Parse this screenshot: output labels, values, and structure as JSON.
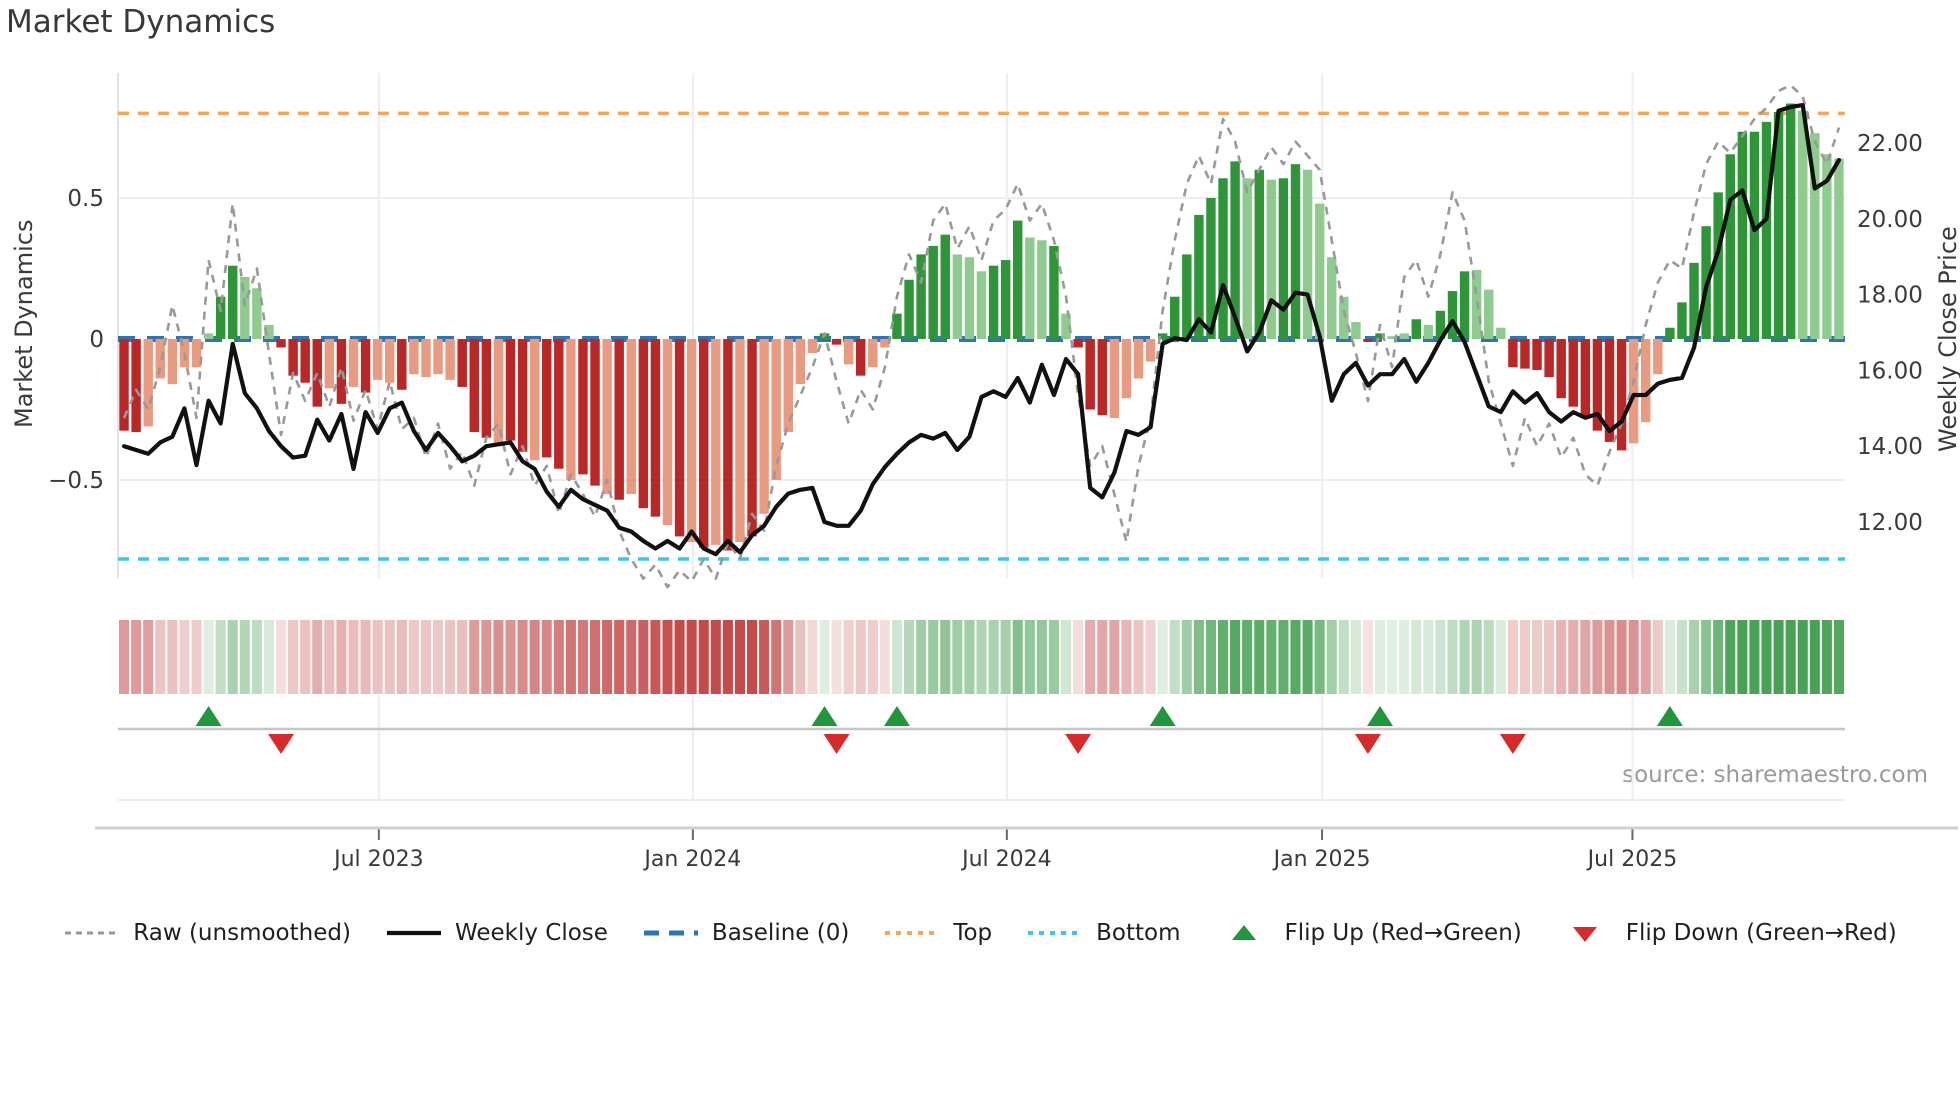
{
  "title": "Market Dynamics",
  "source_text": "source: sharemaestro.com",
  "left_axis": {
    "label": "Market Dynamics",
    "ticks": [
      {
        "label": "0.5",
        "v": 0.5
      },
      {
        "label": "0",
        "v": 0.0
      },
      {
        "label": "−0.5",
        "v": -0.5
      }
    ]
  },
  "right_axis": {
    "label": "Weekly Close Price",
    "ticks": [
      {
        "label": "22.00",
        "p": 22
      },
      {
        "label": "20.00",
        "p": 20
      },
      {
        "label": "18.00",
        "p": 18
      },
      {
        "label": "16.00",
        "p": 16
      },
      {
        "label": "14.00",
        "p": 14
      },
      {
        "label": "12.00",
        "p": 12
      }
    ]
  },
  "legend": {
    "items": [
      {
        "label": "Raw (unsmoothed)",
        "kind": "dash-gray"
      },
      {
        "label": "Weekly Close",
        "kind": "solid-black"
      },
      {
        "label": "Baseline (0)",
        "kind": "dash-blue"
      },
      {
        "label": "Top",
        "kind": "dot-orange"
      },
      {
        "label": "Bottom",
        "kind": "dot-cyan"
      },
      {
        "label": "Flip Up (Red→Green)",
        "kind": "tri-up"
      },
      {
        "label": "Flip Down (Green→Red)",
        "kind": "tri-down"
      }
    ]
  },
  "colors": {
    "bar_red_dark": "#b92727",
    "bar_red_light": "#e89b80",
    "bar_green_dark": "#2e9639",
    "bar_green_light": "#8fcb8f",
    "price_line": "#111111",
    "raw_line": "#999999",
    "baseline": "#2e75b4",
    "top_line": "#f2a85c",
    "bottom_line": "#3ec6e8",
    "flip_up": "#21963c",
    "flip_down": "#d62b2b",
    "grid": "#ededf3",
    "spine": "#d0d0d0",
    "marker_rail": "#c6c6c6",
    "tick_text": "#3a3a3a"
  },
  "chart_data": {
    "type": "bar+line",
    "title": "Market Dynamics",
    "ylabel_left": "Market Dynamics",
    "ylabel_right": "Weekly Close Price",
    "ylim_left": [
      -0.95,
      0.95
    ],
    "ylim_right": [
      10.4,
      23.8
    ],
    "top_threshold": 0.8,
    "bottom_threshold": -0.78,
    "baseline": 0,
    "x_ticks": [
      {
        "label": "Jul 2023",
        "week": 21.1
      },
      {
        "label": "Jan 2024",
        "week": 47.1
      },
      {
        "label": "Jul 2024",
        "week": 73.1
      },
      {
        "label": "Jan 2025",
        "week": 99.2
      },
      {
        "label": "Jul 2025",
        "week": 124.9
      }
    ],
    "oscillator_values": [
      -0.325,
      -0.33,
      -0.31,
      -0.14,
      -0.16,
      -0.1,
      -0.1,
      0.02,
      0.15,
      0.26,
      0.22,
      0.18,
      0.05,
      -0.03,
      -0.13,
      -0.155,
      -0.24,
      -0.175,
      -0.23,
      -0.17,
      -0.19,
      -0.145,
      -0.155,
      -0.18,
      -0.125,
      -0.135,
      -0.125,
      -0.145,
      -0.17,
      -0.33,
      -0.35,
      -0.38,
      -0.36,
      -0.4,
      -0.43,
      -0.42,
      -0.46,
      -0.5,
      -0.48,
      -0.52,
      -0.55,
      -0.57,
      -0.55,
      -0.6,
      -0.63,
      -0.66,
      -0.7,
      -0.72,
      -0.74,
      -0.73,
      -0.75,
      -0.72,
      -0.7,
      -0.62,
      -0.5,
      -0.33,
      -0.16,
      -0.05,
      0.02,
      -0.02,
      -0.09,
      -0.13,
      -0.1,
      -0.03,
      0.09,
      0.21,
      0.3,
      0.33,
      0.37,
      0.3,
      0.29,
      0.24,
      0.26,
      0.28,
      0.42,
      0.36,
      0.35,
      0.33,
      0.09,
      -0.03,
      -0.25,
      -0.27,
      -0.28,
      -0.21,
      -0.14,
      -0.08,
      0.02,
      0.15,
      0.3,
      0.44,
      0.5,
      0.57,
      0.63,
      0.57,
      0.6,
      0.565,
      0.57,
      0.62,
      0.6,
      0.48,
      0.29,
      0.15,
      0.06,
      -0.01,
      0.02,
      0.01,
      0.02,
      0.07,
      0.05,
      0.1,
      0.17,
      0.24,
      0.245,
      0.175,
      0.04,
      -0.1,
      -0.105,
      -0.11,
      -0.135,
      -0.21,
      -0.24,
      -0.28,
      -0.325,
      -0.365,
      -0.395,
      -0.37,
      -0.295,
      -0.125,
      0.04,
      0.13,
      0.27,
      0.4,
      0.52,
      0.655,
      0.735,
      0.735,
      0.77,
      0.805,
      0.835,
      0.81,
      0.73,
      0.655,
      0.64
    ],
    "shade_pattern": "ddlllllldd lllddddldl dlldlllldd dlddlddldd ldlddldldl dldllllldd ldlldddddl lldddlldld ddlllldddd dddldlddll lllddlldld ddlllddddd dddddllldd dddddddddl lll",
    "weekly_close": [
      14.0,
      13.9,
      13.8,
      14.1,
      14.25,
      15.0,
      13.5,
      15.2,
      14.6,
      16.7,
      15.4,
      15.0,
      14.4,
      14.0,
      13.7,
      13.75,
      14.7,
      14.15,
      14.85,
      13.4,
      14.9,
      14.35,
      15.0,
      15.15,
      14.4,
      13.9,
      14.35,
      14.0,
      13.6,
      13.75,
      14.0,
      14.05,
      14.1,
      13.6,
      13.4,
      12.8,
      12.4,
      12.85,
      12.6,
      12.45,
      12.3,
      11.85,
      11.75,
      11.5,
      11.3,
      11.5,
      11.3,
      11.75,
      11.3,
      11.15,
      11.5,
      11.2,
      11.65,
      11.9,
      12.4,
      12.75,
      12.85,
      12.9,
      12.0,
      11.9,
      11.9,
      12.3,
      13.0,
      13.45,
      13.8,
      14.1,
      14.3,
      14.2,
      14.35,
      13.9,
      14.25,
      15.3,
      15.45,
      15.3,
      15.8,
      15.15,
      16.15,
      15.35,
      16.3,
      15.9,
      12.9,
      12.65,
      13.3,
      14.4,
      14.3,
      14.5,
      16.7,
      16.85,
      16.8,
      17.35,
      17.0,
      18.25,
      17.4,
      16.5,
      17.0,
      17.85,
      17.6,
      18.05,
      18.0,
      16.9,
      15.2,
      15.9,
      16.2,
      15.6,
      15.9,
      15.9,
      16.3,
      15.7,
      16.2,
      16.8,
      17.3,
      16.75,
      15.9,
      15.05,
      14.9,
      15.45,
      15.15,
      15.4,
      14.9,
      14.65,
      14.9,
      14.75,
      14.85,
      14.4,
      14.65,
      15.35,
      15.35,
      15.65,
      15.75,
      15.8,
      16.6,
      18.2,
      19.15,
      20.5,
      20.75,
      19.7,
      20.0,
      22.85,
      22.95,
      23.0,
      20.8,
      21.0,
      21.55
    ],
    "raw_values": [
      -0.28,
      -0.18,
      -0.25,
      -0.1,
      0.12,
      -0.05,
      -0.28,
      0.28,
      0.1,
      0.48,
      0.12,
      0.25,
      -0.05,
      -0.34,
      -0.12,
      -0.22,
      -0.12,
      -0.24,
      -0.1,
      -0.29,
      -0.18,
      -0.32,
      -0.15,
      -0.32,
      -0.28,
      -0.42,
      -0.3,
      -0.46,
      -0.4,
      -0.52,
      -0.35,
      -0.3,
      -0.48,
      -0.38,
      -0.52,
      -0.45,
      -0.62,
      -0.48,
      -0.55,
      -0.63,
      -0.5,
      -0.68,
      -0.78,
      -0.85,
      -0.8,
      -0.88,
      -0.82,
      -0.86,
      -0.78,
      -0.85,
      -0.72,
      -0.78,
      -0.62,
      -0.68,
      -0.45,
      -0.3,
      -0.2,
      -0.1,
      0.02,
      -0.15,
      -0.3,
      -0.18,
      -0.25,
      -0.1,
      0.15,
      0.3,
      0.2,
      0.42,
      0.48,
      0.32,
      0.4,
      0.28,
      0.42,
      0.46,
      0.55,
      0.42,
      0.48,
      0.35,
      0.15,
      -0.2,
      -0.45,
      -0.38,
      -0.55,
      -0.72,
      -0.45,
      -0.28,
      0.1,
      0.35,
      0.55,
      0.65,
      0.55,
      0.78,
      0.7,
      0.52,
      0.6,
      0.68,
      0.62,
      0.7,
      0.65,
      0.6,
      0.35,
      0.1,
      -0.05,
      -0.22,
      0.05,
      -0.1,
      0.22,
      0.28,
      0.15,
      0.3,
      0.52,
      0.42,
      0.15,
      -0.15,
      -0.3,
      -0.45,
      -0.28,
      -0.38,
      -0.3,
      -0.42,
      -0.35,
      -0.48,
      -0.52,
      -0.4,
      -0.3,
      -0.15,
      0.05,
      0.2,
      0.28,
      0.25,
      0.45,
      0.62,
      0.7,
      0.66,
      0.72,
      0.78,
      0.82,
      0.88,
      0.9,
      0.86,
      0.7,
      0.62,
      0.75
    ],
    "flip_up_weeks": [
      7,
      58,
      64,
      86,
      104,
      128
    ],
    "flip_down_weeks": [
      13,
      59,
      79,
      103,
      115
    ],
    "heatmap": "same series as oscillator_values, muted red/green tints",
    "legend_position": "bottom center",
    "grid": "light horizontal at ±0.5, light vertical at month ticks"
  }
}
